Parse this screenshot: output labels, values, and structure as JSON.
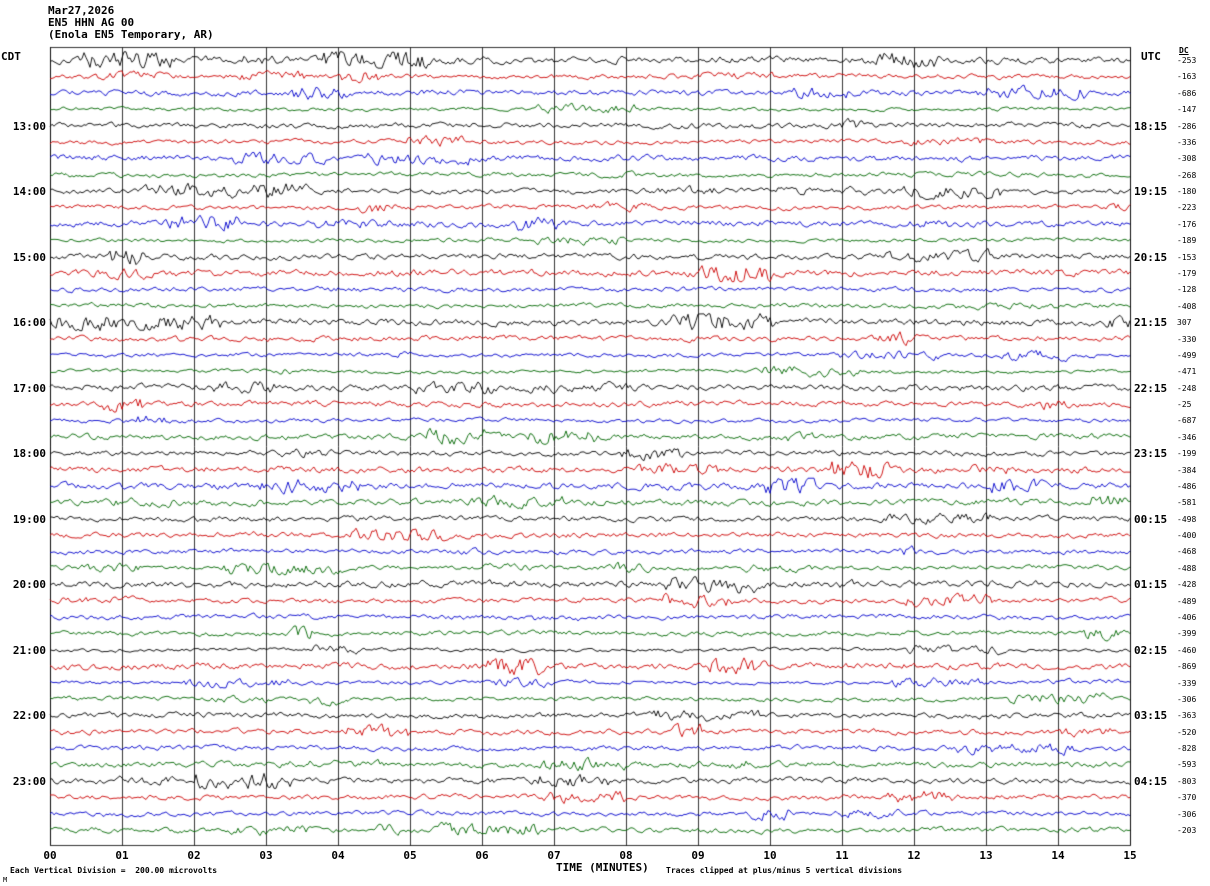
{
  "header": {
    "date": "Mar27,2026",
    "station": "EN5 HHN AG 00",
    "location": "(Enola EN5 Temporary, AR)"
  },
  "axis": {
    "left_tz": "CDT",
    "right_tz": "UTC",
    "dc_label": "DC",
    "x_title": "TIME (MINUTES)"
  },
  "footer": {
    "scale_note": "Each Vertical Division =  200.00 microvolts",
    "clip_note": "Traces clipped at plus/minus 5 vertical divisions",
    "corner_mark": "M"
  },
  "colors": {
    "trace_cycle": [
      "#000000",
      "#cc0000",
      "#0000cc",
      "#006600"
    ],
    "grid": "#000000",
    "background": "#ffffff"
  },
  "chart_data": {
    "type": "line",
    "title": "Helicorder seismogram EN5 HHN AG 00 (Enola EN5 Temporary, AR)",
    "xlabel": "TIME (MINUTES)",
    "x_range_minutes": [
      0,
      15
    ],
    "minutes_per_row": 15,
    "rows_per_hour": 4,
    "grid": "on",
    "x_ticks": [
      "00",
      "01",
      "02",
      "03",
      "04",
      "05",
      "06",
      "07",
      "08",
      "09",
      "10",
      "11",
      "12",
      "13",
      "14",
      "15"
    ],
    "rows": [
      {
        "left": "",
        "right": "",
        "color": 0,
        "dc": -253
      },
      {
        "left": "",
        "right": "",
        "color": 1,
        "dc": -163
      },
      {
        "left": "",
        "right": "",
        "color": 2,
        "dc": -686
      },
      {
        "left": "",
        "right": "",
        "color": 3,
        "dc": -147
      },
      {
        "left": "13:00",
        "right": "18:15",
        "color": 0,
        "dc": -286
      },
      {
        "left": "",
        "right": "",
        "color": 1,
        "dc": -336
      },
      {
        "left": "",
        "right": "",
        "color": 2,
        "dc": -308
      },
      {
        "left": "",
        "right": "",
        "color": 3,
        "dc": -268
      },
      {
        "left": "14:00",
        "right": "19:15",
        "color": 0,
        "dc": -180
      },
      {
        "left": "",
        "right": "",
        "color": 1,
        "dc": -223
      },
      {
        "left": "",
        "right": "",
        "color": 2,
        "dc": -176
      },
      {
        "left": "",
        "right": "",
        "color": 3,
        "dc": -189
      },
      {
        "left": "15:00",
        "right": "20:15",
        "color": 0,
        "dc": -153
      },
      {
        "left": "",
        "right": "",
        "color": 1,
        "dc": -179
      },
      {
        "left": "",
        "right": "",
        "color": 2,
        "dc": -128
      },
      {
        "left": "",
        "right": "",
        "color": 3,
        "dc": -408
      },
      {
        "left": "16:00",
        "right": "21:15",
        "color": 0,
        "dc": 307
      },
      {
        "left": "",
        "right": "",
        "color": 1,
        "dc": -330
      },
      {
        "left": "",
        "right": "",
        "color": 2,
        "dc": -499
      },
      {
        "left": "",
        "right": "",
        "color": 3,
        "dc": -471
      },
      {
        "left": "17:00",
        "right": "22:15",
        "color": 0,
        "dc": -248
      },
      {
        "left": "",
        "right": "",
        "color": 1,
        "dc": -25
      },
      {
        "left": "",
        "right": "",
        "color": 2,
        "dc": -687
      },
      {
        "left": "",
        "right": "",
        "color": 3,
        "dc": -346
      },
      {
        "left": "18:00",
        "right": "23:15",
        "color": 0,
        "dc": -199
      },
      {
        "left": "",
        "right": "",
        "color": 1,
        "dc": -384
      },
      {
        "left": "",
        "right": "",
        "color": 2,
        "dc": -486
      },
      {
        "left": "",
        "right": "",
        "color": 3,
        "dc": -581
      },
      {
        "left": "19:00",
        "right": "00:15",
        "color": 0,
        "dc": -498
      },
      {
        "left": "",
        "right": "",
        "color": 1,
        "dc": -400
      },
      {
        "left": "",
        "right": "",
        "color": 2,
        "dc": -468
      },
      {
        "left": "",
        "right": "",
        "color": 3,
        "dc": -488
      },
      {
        "left": "20:00",
        "right": "01:15",
        "color": 0,
        "dc": -428
      },
      {
        "left": "",
        "right": "",
        "color": 1,
        "dc": -489
      },
      {
        "left": "",
        "right": "",
        "color": 2,
        "dc": -406
      },
      {
        "left": "",
        "right": "",
        "color": 3,
        "dc": -399
      },
      {
        "left": "21:00",
        "right": "02:15",
        "color": 0,
        "dc": -460
      },
      {
        "left": "",
        "right": "",
        "color": 1,
        "dc": -869
      },
      {
        "left": "",
        "right": "",
        "color": 2,
        "dc": -339
      },
      {
        "left": "",
        "right": "",
        "color": 3,
        "dc": -306
      },
      {
        "left": "22:00",
        "right": "03:15",
        "color": 0,
        "dc": -363
      },
      {
        "left": "",
        "right": "",
        "color": 1,
        "dc": -520
      },
      {
        "left": "",
        "right": "",
        "color": 2,
        "dc": -828
      },
      {
        "left": "",
        "right": "",
        "color": 3,
        "dc": -593
      },
      {
        "left": "23:00",
        "right": "04:15",
        "color": 0,
        "dc": -803
      },
      {
        "left": "",
        "right": "",
        "color": 1,
        "dc": -370
      },
      {
        "left": "",
        "right": "",
        "color": 2,
        "dc": -306
      },
      {
        "left": "",
        "right": "",
        "color": 3,
        "dc": -203
      }
    ]
  }
}
